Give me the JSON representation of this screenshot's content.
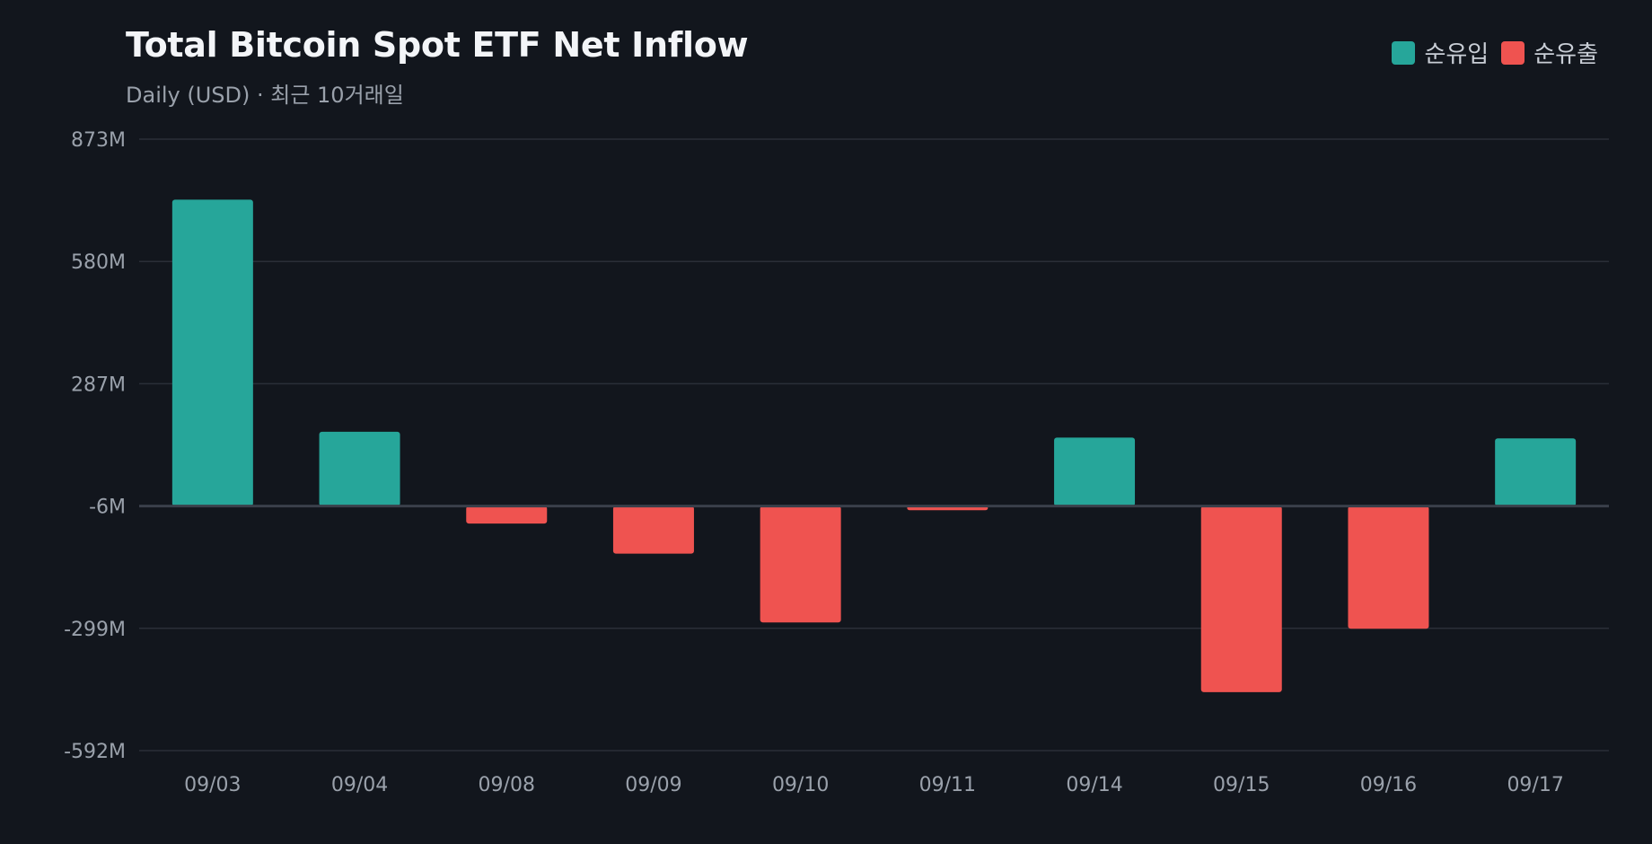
{
  "chart_data": {
    "type": "bar",
    "title": "Total Bitcoin Spot ETF Net Inflow",
    "subtitle": "Daily (USD) · 최근 10거래일",
    "categories": [
      "09/03",
      "09/04",
      "09/08",
      "09/09",
      "09/10",
      "09/11",
      "09/14",
      "09/15",
      "09/16",
      "09/17"
    ],
    "values": [
      728,
      172,
      -48,
      -120,
      -285,
      -16,
      158,
      -452,
      -300,
      156
    ],
    "yticks": [
      873,
      580,
      287,
      -6,
      -299,
      -592
    ],
    "ytick_labels": [
      "873M",
      "580M",
      "287M",
      "-6M",
      "-299M",
      "-592M"
    ],
    "ylim": [
      -592,
      873
    ],
    "baseline": -6,
    "grid": true,
    "legend": {
      "position": "top-right",
      "items": [
        {
          "label": "순유입",
          "color": "#26a69a"
        },
        {
          "label": "순유출",
          "color": "#ef5350"
        }
      ]
    },
    "colors": {
      "positive": "#26a69a",
      "negative": "#ef5350",
      "grid": "#2a2f38",
      "baseline": "#3a3f4a"
    }
  }
}
